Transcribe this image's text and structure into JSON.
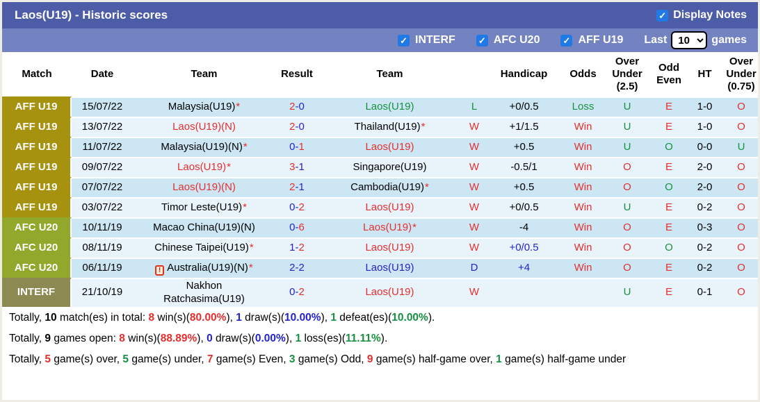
{
  "header": {
    "title": "Laos(U19) - Historic scores",
    "display_notes_label": "Display Notes"
  },
  "filters": {
    "checkboxes": [
      {
        "label": "INTERF",
        "checked": true
      },
      {
        "label": "AFC U20",
        "checked": true
      },
      {
        "label": "AFF U19",
        "checked": true
      }
    ],
    "last_label": "Last",
    "games_label": "games",
    "last_games_value": "10"
  },
  "icons": {
    "check": "✓",
    "card": "!",
    "star": "*"
  },
  "colors": {
    "title_bar": "#4c5ca6",
    "filter_bar": "#7383c1",
    "aff_badge": "#a79210",
    "afc_badge": "#92a82c",
    "interf_badge": "#8c8952",
    "row_dark": "#cde6f4",
    "row_light": "#e9f3fa",
    "red": "#e62e2e",
    "blue": "#2323cf",
    "green": "#16913f",
    "checkbox_blue": "#2079e5"
  },
  "table": {
    "headers": [
      "Match",
      "Date",
      "Team",
      "Result",
      "Team",
      "",
      "Handicap",
      "Odds",
      "Over Under (2.5)",
      "Odd Even",
      "HT",
      "Over Under (0.75)"
    ],
    "rows": [
      {
        "match": "AFF U19",
        "match_style": "aff",
        "date": "15/07/22",
        "home": {
          "name": "Malaysia(U19)",
          "color": "black",
          "star": true,
          "card_icon": false
        },
        "score": {
          "home": "2",
          "away": "0",
          "home_color": "red",
          "away_color": "blue"
        },
        "away": {
          "name": "Laos(U19)",
          "color": "green",
          "star": false
        },
        "letter": {
          "text": "L",
          "color": "green"
        },
        "handicap": {
          "text": "+0/0.5",
          "color": "black"
        },
        "odds": {
          "text": "Loss",
          "color": "green"
        },
        "ou25": {
          "text": "U",
          "color": "green"
        },
        "odd_even": {
          "text": "E",
          "color": "red"
        },
        "ht": "1-0",
        "ou075": {
          "text": "O",
          "color": "red"
        }
      },
      {
        "match": "AFF U19",
        "match_style": "aff",
        "date": "13/07/22",
        "home": {
          "name": "Laos(U19)(N)",
          "color": "red",
          "star": false,
          "card_icon": false
        },
        "score": {
          "home": "2",
          "away": "0",
          "home_color": "red",
          "away_color": "blue"
        },
        "away": {
          "name": "Thailand(U19)",
          "color": "black",
          "star": true
        },
        "letter": {
          "text": "W",
          "color": "red"
        },
        "handicap": {
          "text": "+1/1.5",
          "color": "black"
        },
        "odds": {
          "text": "Win",
          "color": "red"
        },
        "ou25": {
          "text": "U",
          "color": "green"
        },
        "odd_even": {
          "text": "E",
          "color": "red"
        },
        "ht": "1-0",
        "ou075": {
          "text": "O",
          "color": "red"
        }
      },
      {
        "match": "AFF U19",
        "match_style": "aff",
        "date": "11/07/22",
        "home": {
          "name": "Malaysia(U19)(N)",
          "color": "black",
          "star": true,
          "card_icon": false
        },
        "score": {
          "home": "0",
          "away": "1",
          "home_color": "blue",
          "away_color": "red"
        },
        "away": {
          "name": "Laos(U19)",
          "color": "red",
          "star": false
        },
        "letter": {
          "text": "W",
          "color": "red"
        },
        "handicap": {
          "text": "+0.5",
          "color": "black"
        },
        "odds": {
          "text": "Win",
          "color": "red"
        },
        "ou25": {
          "text": "U",
          "color": "green"
        },
        "odd_even": {
          "text": "O",
          "color": "green"
        },
        "ht": "0-0",
        "ou075": {
          "text": "U",
          "color": "green"
        }
      },
      {
        "match": "AFF U19",
        "match_style": "aff",
        "date": "09/07/22",
        "home": {
          "name": "Laos(U19)",
          "color": "red",
          "star": true,
          "card_icon": false
        },
        "score": {
          "home": "3",
          "away": "1",
          "home_color": "red",
          "away_color": "blue"
        },
        "away": {
          "name": "Singapore(U19)",
          "color": "black",
          "star": false
        },
        "letter": {
          "text": "W",
          "color": "red"
        },
        "handicap": {
          "text": "-0.5/1",
          "color": "black"
        },
        "odds": {
          "text": "Win",
          "color": "red"
        },
        "ou25": {
          "text": "O",
          "color": "red"
        },
        "odd_even": {
          "text": "E",
          "color": "red"
        },
        "ht": "2-0",
        "ou075": {
          "text": "O",
          "color": "red"
        }
      },
      {
        "match": "AFF U19",
        "match_style": "aff",
        "date": "07/07/22",
        "home": {
          "name": "Laos(U19)(N)",
          "color": "red",
          "star": false,
          "card_icon": false
        },
        "score": {
          "home": "2",
          "away": "1",
          "home_color": "red",
          "away_color": "blue"
        },
        "away": {
          "name": "Cambodia(U19)",
          "color": "black",
          "star": true
        },
        "letter": {
          "text": "W",
          "color": "red"
        },
        "handicap": {
          "text": "+0.5",
          "color": "black"
        },
        "odds": {
          "text": "Win",
          "color": "red"
        },
        "ou25": {
          "text": "O",
          "color": "red"
        },
        "odd_even": {
          "text": "O",
          "color": "green"
        },
        "ht": "2-0",
        "ou075": {
          "text": "O",
          "color": "red"
        }
      },
      {
        "match": "AFF U19",
        "match_style": "aff",
        "date": "03/07/22",
        "home": {
          "name": "Timor Leste(U19)",
          "color": "black",
          "star": true,
          "card_icon": false
        },
        "score": {
          "home": "0",
          "away": "2",
          "home_color": "blue",
          "away_color": "red"
        },
        "away": {
          "name": "Laos(U19)",
          "color": "red",
          "star": false
        },
        "letter": {
          "text": "W",
          "color": "red"
        },
        "handicap": {
          "text": "+0/0.5",
          "color": "black"
        },
        "odds": {
          "text": "Win",
          "color": "red"
        },
        "ou25": {
          "text": "U",
          "color": "green"
        },
        "odd_even": {
          "text": "E",
          "color": "red"
        },
        "ht": "0-2",
        "ou075": {
          "text": "O",
          "color": "red"
        }
      },
      {
        "match": "AFC U20",
        "match_style": "afc",
        "date": "10/11/19",
        "home": {
          "name": "Macao China(U19)(N)",
          "color": "black",
          "star": false,
          "card_icon": false
        },
        "score": {
          "home": "0",
          "away": "6",
          "home_color": "blue",
          "away_color": "red"
        },
        "away": {
          "name": "Laos(U19)",
          "color": "red",
          "star": true
        },
        "letter": {
          "text": "W",
          "color": "red"
        },
        "handicap": {
          "text": "-4",
          "color": "black"
        },
        "odds": {
          "text": "Win",
          "color": "red"
        },
        "ou25": {
          "text": "O",
          "color": "red"
        },
        "odd_even": {
          "text": "E",
          "color": "red"
        },
        "ht": "0-3",
        "ou075": {
          "text": "O",
          "color": "red"
        }
      },
      {
        "match": "AFC U20",
        "match_style": "afc",
        "date": "08/11/19",
        "home": {
          "name": "Chinese Taipei(U19)",
          "color": "black",
          "star": true,
          "card_icon": false
        },
        "score": {
          "home": "1",
          "away": "2",
          "home_color": "blue",
          "away_color": "red"
        },
        "away": {
          "name": "Laos(U19)",
          "color": "red",
          "star": false
        },
        "letter": {
          "text": "W",
          "color": "red"
        },
        "handicap": {
          "text": "+0/0.5",
          "color": "blue"
        },
        "odds": {
          "text": "Win",
          "color": "red"
        },
        "ou25": {
          "text": "O",
          "color": "red"
        },
        "odd_even": {
          "text": "O",
          "color": "green"
        },
        "ht": "0-2",
        "ou075": {
          "text": "O",
          "color": "red"
        }
      },
      {
        "match": "AFC U20",
        "match_style": "afc",
        "date": "06/11/19",
        "home": {
          "name": "Australia(U19)(N)",
          "color": "black",
          "star": true,
          "card_icon": true
        },
        "score": {
          "home": "2",
          "away": "2",
          "home_color": "blue",
          "away_color": "blue"
        },
        "away": {
          "name": "Laos(U19)",
          "color": "blue",
          "star": false
        },
        "letter": {
          "text": "D",
          "color": "blue"
        },
        "handicap": {
          "text": "+4",
          "color": "blue"
        },
        "odds": {
          "text": "Win",
          "color": "red"
        },
        "ou25": {
          "text": "O",
          "color": "red"
        },
        "odd_even": {
          "text": "E",
          "color": "red"
        },
        "ht": "0-2",
        "ou075": {
          "text": "O",
          "color": "red"
        }
      },
      {
        "match": "INTERF",
        "match_style": "interf",
        "date": "21/10/19",
        "home": {
          "name": "Nakhon\nRatchasima(U19)",
          "color": "black",
          "star": false,
          "card_icon": false
        },
        "score": {
          "home": "0",
          "away": "2",
          "home_color": "blue",
          "away_color": "red"
        },
        "away": {
          "name": "Laos(U19)",
          "color": "red",
          "star": false
        },
        "letter": {
          "text": "W",
          "color": "red"
        },
        "handicap": {
          "text": "",
          "color": "black"
        },
        "odds": {
          "text": "",
          "color": "black"
        },
        "ou25": {
          "text": "U",
          "color": "green"
        },
        "odd_even": {
          "text": "E",
          "color": "red"
        },
        "ht": "0-1",
        "ou075": {
          "text": "O",
          "color": "red"
        }
      }
    ]
  },
  "footer": {
    "lines": [
      [
        {
          "t": "Totally, "
        },
        {
          "t": "10",
          "b": true
        },
        {
          "t": " match(es) in total: "
        },
        {
          "t": "8",
          "c": "red",
          "b": true
        },
        {
          "t": " win(s)("
        },
        {
          "t": "80.00%",
          "c": "red",
          "b": true
        },
        {
          "t": "), "
        },
        {
          "t": "1",
          "c": "blue",
          "b": true
        },
        {
          "t": " draw(s)("
        },
        {
          "t": "10.00%",
          "c": "blue",
          "b": true
        },
        {
          "t": "), "
        },
        {
          "t": "1",
          "c": "green",
          "b": true
        },
        {
          "t": " defeat(es)("
        },
        {
          "t": "10.00%",
          "c": "green",
          "b": true
        },
        {
          "t": ")."
        }
      ],
      [
        {
          "t": "Totally, "
        },
        {
          "t": "9",
          "b": true
        },
        {
          "t": " games open: "
        },
        {
          "t": "8",
          "c": "red",
          "b": true
        },
        {
          "t": " win(s)("
        },
        {
          "t": "88.89%",
          "c": "red",
          "b": true
        },
        {
          "t": "), "
        },
        {
          "t": "0",
          "c": "blue",
          "b": true
        },
        {
          "t": " draw(s)("
        },
        {
          "t": "0.00%",
          "c": "blue",
          "b": true
        },
        {
          "t": "), "
        },
        {
          "t": "1",
          "c": "green",
          "b": true
        },
        {
          "t": " loss(es)("
        },
        {
          "t": "11.11%",
          "c": "green",
          "b": true
        },
        {
          "t": ")."
        }
      ],
      [
        {
          "t": "Totally, "
        },
        {
          "t": "5",
          "c": "red",
          "b": true
        },
        {
          "t": " game(s) over, "
        },
        {
          "t": "5",
          "c": "green",
          "b": true
        },
        {
          "t": " game(s) under, "
        },
        {
          "t": "7",
          "c": "red",
          "b": true
        },
        {
          "t": " game(s) Even, "
        },
        {
          "t": "3",
          "c": "green",
          "b": true
        },
        {
          "t": " game(s) Odd, "
        },
        {
          "t": "9",
          "c": "red",
          "b": true
        },
        {
          "t": " game(s) half-game over, "
        },
        {
          "t": "1",
          "c": "green",
          "b": true
        },
        {
          "t": " game(s) half-game under"
        }
      ]
    ]
  }
}
